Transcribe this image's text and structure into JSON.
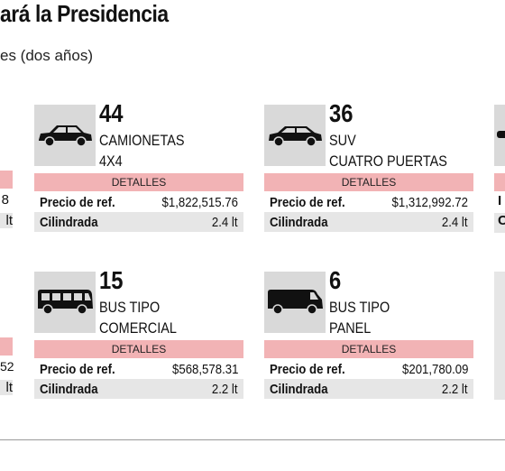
{
  "header": {
    "title": "ará la Presidencia",
    "subtitle": "es (dos años)"
  },
  "detail_label": "DETALLES",
  "price_label": "Precio de ref.",
  "cc_label": "Cilindrada",
  "cards": [
    {
      "count": "44",
      "name1": "CAMIONETAS",
      "name2": "4X4",
      "price": "$1,822,515.76",
      "cc": "2.4 lt",
      "icon": "suv-4x4-icon"
    },
    {
      "count": "36",
      "name1": "SUV",
      "name2": "CUATRO PUERTAS",
      "price": "$1,312,992.72",
      "cc": "2.4 lt",
      "icon": "suv-icon"
    },
    {
      "count": "15",
      "name1": "BUS TIPO",
      "name2": "COMERCIAL",
      "price": "$568,578.31",
      "cc": "2.2 lt",
      "icon": "bus-icon"
    },
    {
      "count": "6",
      "name1": "BUS TIPO",
      "name2": "PANEL",
      "price": "$201,780.09",
      "cc": "2.2 lt",
      "icon": "panel-van-icon"
    }
  ],
  "left_partial": {
    "row1_price": "8",
    "row1_cc": "lt",
    "row2_price": "52",
    "row2_cc": "lt"
  },
  "right_partial": {
    "p1": "I",
    "c1": "C"
  }
}
